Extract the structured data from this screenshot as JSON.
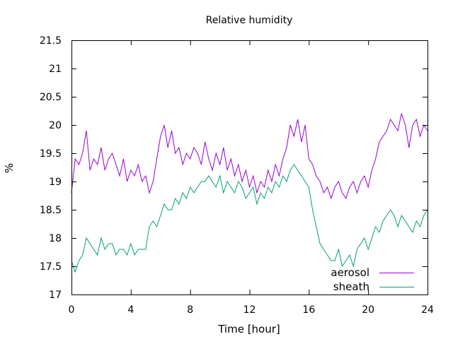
{
  "chart_data": {
    "type": "line",
    "title": "Relative humidity",
    "xlabel": "Time [hour]",
    "ylabel": "%",
    "xlim": [
      0,
      24
    ],
    "ylim": [
      17,
      21.5
    ],
    "xticks": [
      0,
      4,
      8,
      12,
      16,
      20,
      24
    ],
    "yticks": [
      17,
      17.5,
      18,
      18.5,
      19,
      19.5,
      20,
      20.5,
      21,
      21.5
    ],
    "grid": false,
    "legend_position": "bottom-right",
    "series": [
      {
        "name": "aerosol",
        "color": "#9400d3",
        "x": [
          0,
          0.25,
          0.5,
          0.75,
          1,
          1.25,
          1.5,
          1.75,
          2,
          2.25,
          2.5,
          2.75,
          3,
          3.25,
          3.5,
          3.75,
          4,
          4.25,
          4.5,
          4.75,
          5,
          5.25,
          5.5,
          5.75,
          6,
          6.25,
          6.5,
          6.75,
          7,
          7.25,
          7.5,
          7.75,
          8,
          8.25,
          8.5,
          8.75,
          9,
          9.25,
          9.5,
          9.75,
          10,
          10.25,
          10.5,
          10.75,
          11,
          11.25,
          11.5,
          11.75,
          12,
          12.25,
          12.5,
          12.75,
          13,
          13.25,
          13.5,
          13.75,
          14,
          14.25,
          14.5,
          14.75,
          15,
          15.25,
          15.5,
          15.75,
          16,
          16.25,
          16.5,
          16.75,
          17,
          17.25,
          17.5,
          17.75,
          18,
          18.25,
          18.5,
          18.75,
          19,
          19.25,
          19.5,
          19.75,
          20,
          20.25,
          20.5,
          20.75,
          21,
          21.25,
          21.5,
          21.75,
          22,
          22.25,
          22.5,
          22.75,
          23,
          23.25,
          23.5,
          23.75,
          24
        ],
        "values": [
          18.8,
          19.4,
          19.3,
          19.5,
          19.9,
          19.2,
          19.4,
          19.3,
          19.6,
          19.2,
          19.4,
          19.5,
          19.3,
          19.1,
          19.4,
          19.0,
          19.2,
          19.1,
          19.3,
          19.0,
          19.1,
          18.8,
          19.0,
          19.4,
          19.8,
          20.0,
          19.6,
          19.9,
          19.5,
          19.6,
          19.3,
          19.5,
          19.4,
          19.6,
          19.5,
          19.3,
          19.7,
          19.4,
          19.2,
          19.5,
          19.3,
          19.6,
          19.2,
          19.4,
          19.1,
          19.3,
          19.0,
          19.2,
          18.9,
          19.1,
          18.8,
          19.0,
          18.9,
          19.2,
          19.0,
          19.3,
          19.1,
          19.4,
          19.6,
          20.0,
          19.8,
          20.1,
          19.7,
          20.0,
          19.4,
          19.3,
          19.1,
          19.0,
          18.8,
          18.9,
          18.7,
          18.9,
          19.0,
          18.8,
          18.7,
          18.9,
          19.0,
          18.8,
          19.0,
          19.1,
          18.9,
          19.2,
          19.4,
          19.7,
          19.8,
          19.9,
          20.1,
          20.0,
          19.9,
          20.2,
          20.0,
          19.6,
          20.0,
          20.1,
          19.8,
          20.0,
          19.9
        ]
      },
      {
        "name": "sheath",
        "color": "#009e73",
        "x": [
          0,
          0.25,
          0.5,
          0.75,
          1,
          1.25,
          1.5,
          1.75,
          2,
          2.25,
          2.5,
          2.75,
          3,
          3.25,
          3.5,
          3.75,
          4,
          4.25,
          4.5,
          4.75,
          5,
          5.25,
          5.5,
          5.75,
          6,
          6.25,
          6.5,
          6.75,
          7,
          7.25,
          7.5,
          7.75,
          8,
          8.25,
          8.5,
          8.75,
          9,
          9.25,
          9.5,
          9.75,
          10,
          10.25,
          10.5,
          10.75,
          11,
          11.25,
          11.5,
          11.75,
          12,
          12.25,
          12.5,
          12.75,
          13,
          13.25,
          13.5,
          13.75,
          14,
          14.25,
          14.5,
          14.75,
          15,
          15.25,
          15.5,
          15.75,
          16,
          16.25,
          16.5,
          16.75,
          17,
          17.25,
          17.5,
          17.75,
          18,
          18.25,
          18.5,
          18.75,
          19,
          19.25,
          19.5,
          19.75,
          20,
          20.25,
          20.5,
          20.75,
          21,
          21.25,
          21.5,
          21.75,
          22,
          22.25,
          22.5,
          22.75,
          23,
          23.25,
          23.5,
          23.75,
          24
        ],
        "values": [
          17.6,
          17.4,
          17.6,
          17.7,
          18.0,
          17.9,
          17.8,
          17.7,
          18.0,
          17.8,
          17.9,
          17.9,
          17.7,
          17.8,
          17.8,
          17.7,
          17.9,
          17.7,
          17.8,
          17.8,
          17.8,
          18.2,
          18.3,
          18.2,
          18.4,
          18.6,
          18.5,
          18.5,
          18.7,
          18.6,
          18.8,
          18.7,
          18.9,
          18.8,
          18.9,
          19.0,
          19.0,
          19.1,
          19.0,
          18.9,
          19.1,
          18.8,
          19.0,
          18.9,
          18.8,
          19.0,
          18.9,
          18.7,
          18.8,
          18.9,
          18.6,
          18.8,
          18.7,
          18.9,
          18.8,
          19.0,
          18.9,
          19.1,
          19.0,
          19.2,
          19.3,
          19.2,
          19.1,
          19.0,
          18.9,
          18.5,
          18.2,
          17.9,
          17.8,
          17.7,
          17.6,
          17.6,
          17.8,
          17.5,
          17.6,
          17.7,
          17.5,
          17.8,
          17.9,
          18.0,
          17.8,
          18.0,
          18.2,
          18.1,
          18.3,
          18.4,
          18.5,
          18.4,
          18.2,
          18.4,
          18.3,
          18.2,
          18.1,
          18.3,
          18.2,
          18.4,
          18.5
        ]
      }
    ]
  }
}
